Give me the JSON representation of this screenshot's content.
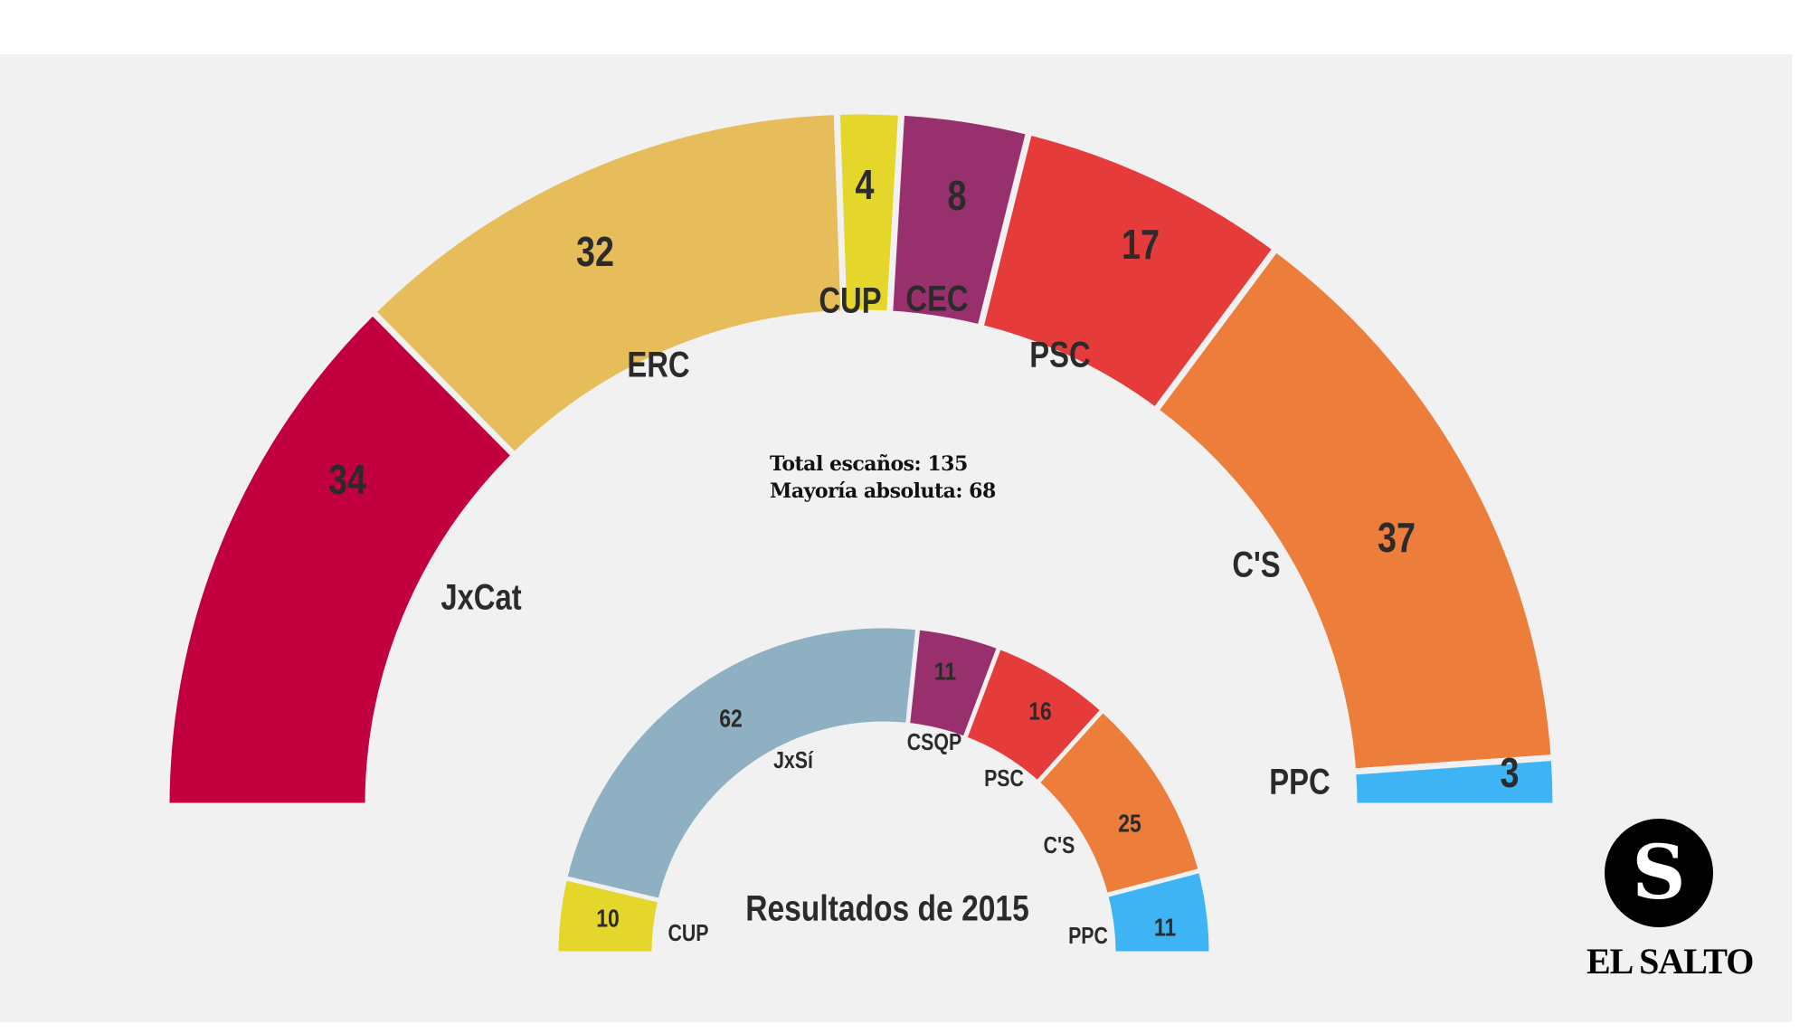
{
  "chart_data": [
    {
      "type": "pie",
      "variant": "half-donut parliament",
      "categories": [
        "JxCat",
        "ERC",
        "CUP",
        "CEC",
        "PSC",
        "C'S",
        "PPC"
      ],
      "values": [
        34,
        32,
        4,
        8,
        17,
        37,
        3
      ],
      "colors": [
        "#c3003f",
        "#e6bd5a",
        "#e5d62b",
        "#97306d",
        "#e63b3b",
        "#ed7d3a",
        "#3fb4f5"
      ],
      "notes": [
        "Total escaños: 135",
        "Mayoría absoluta: 68"
      ]
    },
    {
      "type": "pie",
      "variant": "half-donut parliament",
      "title": "Resultados de 2015",
      "categories": [
        "CUP",
        "JxSí",
        "CSQP",
        "PSC",
        "C'S",
        "PPC"
      ],
      "values": [
        10,
        62,
        11,
        16,
        25,
        11
      ],
      "colors": [
        "#e5d62b",
        "#8fb0c2",
        "#97306d",
        "#e63b3b",
        "#ed7d3a",
        "#3fb4f5"
      ]
    }
  ],
  "logo": {
    "letter": "S",
    "text": "EL SALTO"
  }
}
